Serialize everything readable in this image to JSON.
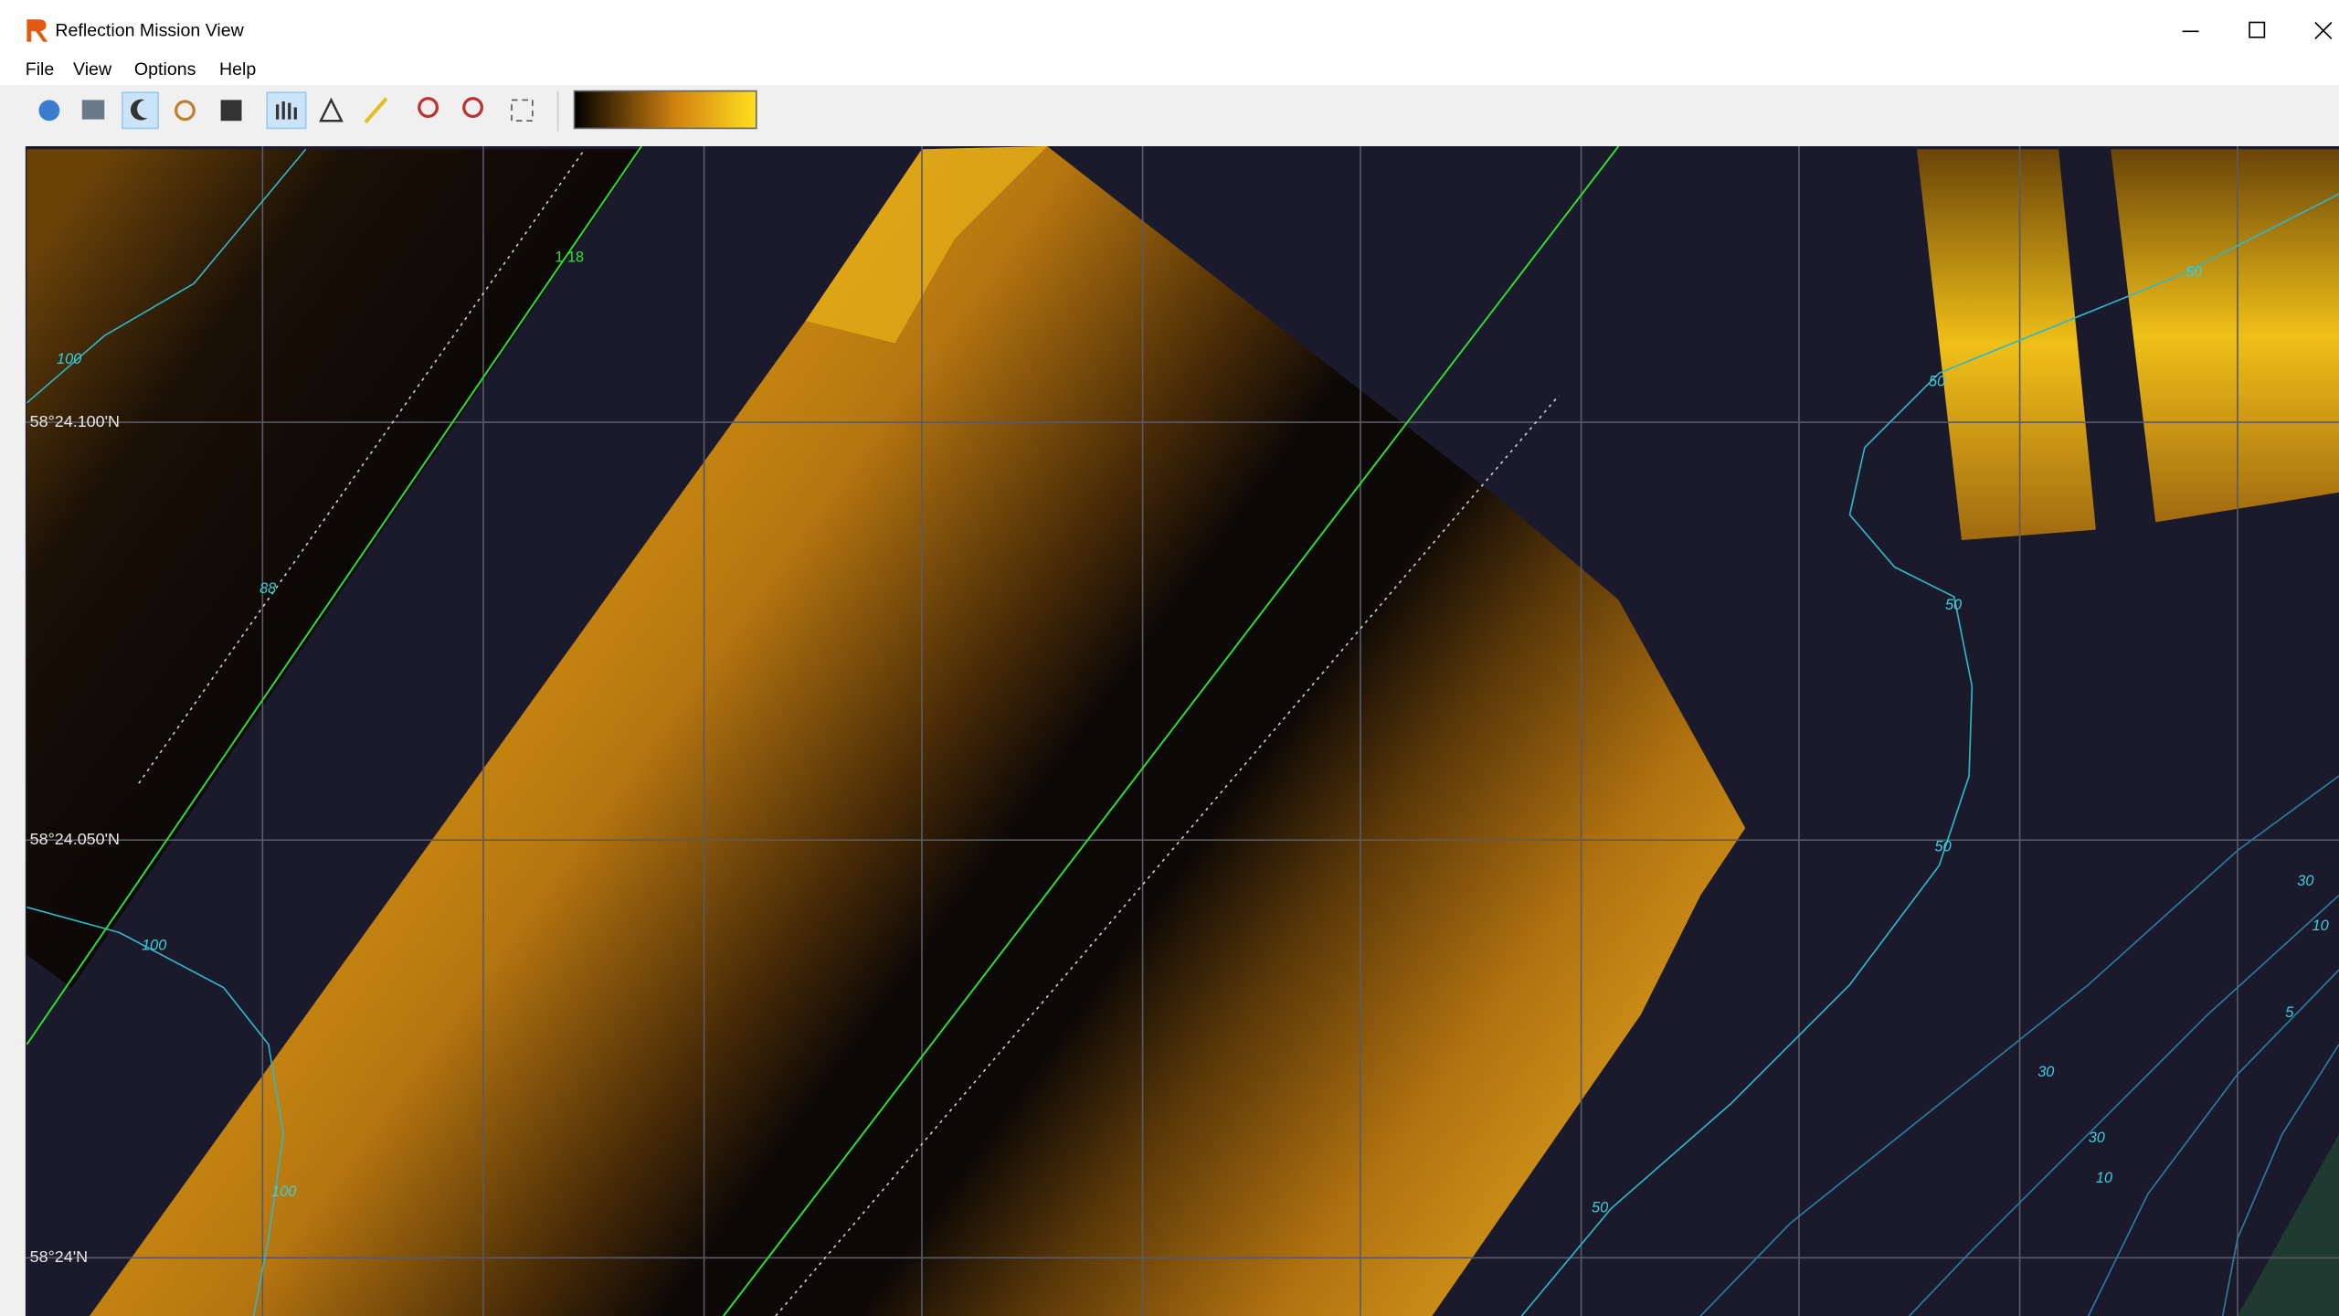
{
  "window": {
    "title": "Reflection Mission View"
  },
  "menu": [
    "File",
    "View",
    "Options",
    "Help"
  ],
  "map": {
    "latitude_labels": [
      "58°24.100'N",
      "58°24.050'N",
      "58°24'N"
    ],
    "track_label": "1 18",
    "contour_labels": [
      "100",
      "88",
      "100",
      "100",
      "50",
      "50",
      "50",
      "50",
      "50",
      "30",
      "30",
      "10",
      "30",
      "10",
      "5"
    ]
  }
}
